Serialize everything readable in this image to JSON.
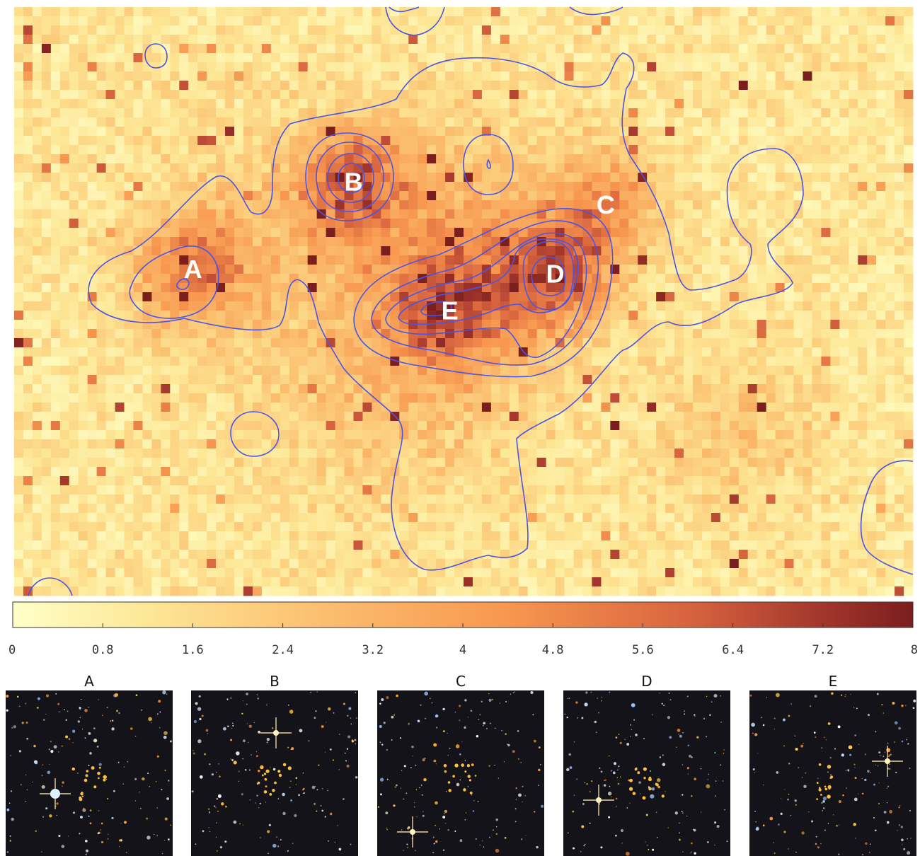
{
  "chart_data": {
    "type": "heatmap",
    "title": "",
    "colorbar": {
      "range": [
        0,
        8
      ],
      "tick_labels": [
        "0",
        "0.8",
        "1.6",
        "2.4",
        "3.2",
        "4",
        "4.8",
        "5.6",
        "6.4",
        "7.2",
        "8"
      ],
      "colormap": [
        "#ffffc8",
        "#fde796",
        "#fbbd6e",
        "#f8974f",
        "#d8643f",
        "#a2362c",
        "#7b1e1e"
      ]
    },
    "grid": {
      "columns": 98,
      "rows": 64
    },
    "contour_color": "#4a55e6",
    "peak_markers": [
      {
        "label": "A",
        "x": 19,
        "y": 28,
        "intensity": 6.5
      },
      {
        "label": "B",
        "x": 36.5,
        "y": 18.5,
        "intensity": 7.2
      },
      {
        "label": "C",
        "x": 64,
        "y": 21,
        "intensity": 5.0
      },
      {
        "label": "D",
        "x": 58.5,
        "y": 28.5,
        "intensity": 7.8
      },
      {
        "label": "E",
        "x": 47,
        "y": 32.5,
        "intensity": 6.4
      }
    ],
    "thumbnails": [
      {
        "title": "A"
      },
      {
        "title": "B"
      },
      {
        "title": "C"
      },
      {
        "title": "D"
      },
      {
        "title": "E"
      }
    ]
  }
}
